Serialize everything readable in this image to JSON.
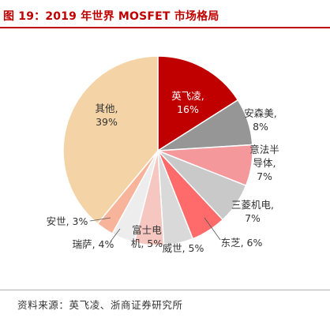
{
  "header": {
    "title": "图 19：2019 年世界 MOSFET 市场格局"
  },
  "chart_data": {
    "type": "pie",
    "start_angle_deg": 0,
    "direction": "clockwise",
    "slices": [
      {
        "name": "英飞凌",
        "value": 16,
        "label": [
          "英飞凌,",
          "16%"
        ],
        "color": "#c00000",
        "label_color": "#ffffff"
      },
      {
        "name": "安森美",
        "value": 8,
        "label": [
          "安森美,",
          "8%"
        ],
        "color": "#969696",
        "label_color": "#333333"
      },
      {
        "name": "意法半导体",
        "value": 7,
        "label": [
          "意法半",
          "导体,",
          "7%"
        ],
        "color": "#f4989c",
        "label_color": "#333333"
      },
      {
        "name": "三菱机电",
        "value": 7,
        "label": [
          "三菱机电,",
          "7%"
        ],
        "color": "#c9c9c9",
        "label_color": "#333333"
      },
      {
        "name": "东芝",
        "value": 6,
        "label": [
          "东芝, 6%"
        ],
        "color": "#ff6b6b",
        "label_color": "#333333"
      },
      {
        "name": "威世",
        "value": 5,
        "label": [
          "威世, 5%"
        ],
        "color": "#d9d9d9",
        "label_color": "#333333"
      },
      {
        "name": "富士电机",
        "value": 5,
        "label": [
          "富士电",
          "机, 5%"
        ],
        "color": "#f6c6c0",
        "label_color": "#333333"
      },
      {
        "name": "瑞萨",
        "value": 4,
        "label": [
          "瑞萨, 4%"
        ],
        "color": "#ededed",
        "label_color": "#333333"
      },
      {
        "name": "安世",
        "value": 3,
        "label": [
          "安世, 3%"
        ],
        "color": "#f8b49a",
        "label_color": "#333333"
      },
      {
        "name": "其他",
        "value": 39,
        "label": [
          "其他,",
          "39%"
        ],
        "color": "#f4d3a6",
        "label_color": "#333333"
      }
    ]
  },
  "footer": {
    "source": "资料来源：英飞凌、浙商证券研究所"
  }
}
